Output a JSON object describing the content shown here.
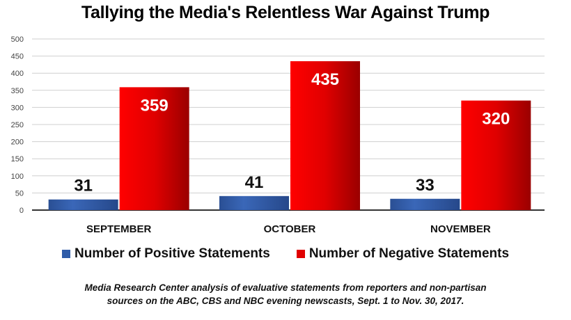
{
  "chart_data": {
    "type": "bar",
    "title": "Tallying the Media's Relentless War Against Trump",
    "categories": [
      "SEPTEMBER",
      "OCTOBER",
      "NOVEMBER"
    ],
    "series": [
      {
        "name": "Number of Positive Statements",
        "values": [
          31,
          41,
          33
        ],
        "color": "#2f5ca8"
      },
      {
        "name": "Number of Negative Statements",
        "values": [
          359,
          435,
          320
        ],
        "color": "#e00000"
      }
    ],
    "xlabel": "",
    "ylabel": "",
    "ylim": [
      0,
      500
    ],
    "yticks": [
      0,
      50,
      100,
      150,
      200,
      250,
      300,
      350,
      400,
      450,
      500
    ],
    "grid": true,
    "legend_position": "bottom"
  },
  "footnote": {
    "line1": "Media Research Center analysis of evaluative statements from reporters and non-partisan",
    "line2": "sources on the ABC, CBS and NBC evening newscasts, Sept. 1 to Nov. 30, 2017."
  }
}
